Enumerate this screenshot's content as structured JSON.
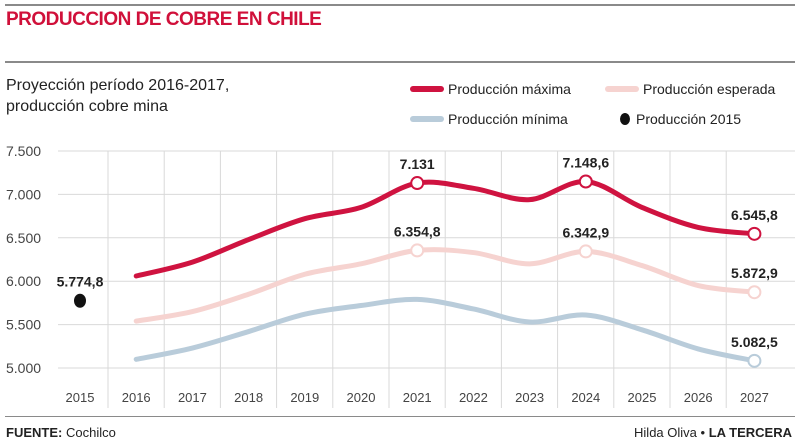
{
  "title": "PRODUCCION DE COBRE EN CHILE",
  "subtitle_line1": "Proyección período 2016-2017,",
  "subtitle_line2": "producción cobre mina",
  "source_label": "FUENTE:",
  "source_value": "Cochilco",
  "credit_author": "Hilda Oliva",
  "credit_separator": "•",
  "credit_publication": "LA TERCERA",
  "colors": {
    "title": "#d0103a",
    "maxima": "#cf1340",
    "esperada": "#f6d3d0",
    "minima": "#b9ccda",
    "p2015": "#111111"
  },
  "chart_data": {
    "type": "line",
    "title": "",
    "xlabel": "",
    "ylabel": "",
    "ylim": [
      5000,
      7500
    ],
    "y_ticks": [
      "7.500",
      "7.000",
      "6.500",
      "6.000",
      "5.500",
      "5.000"
    ],
    "y_tick_values": [
      7500,
      7000,
      6500,
      6000,
      5500,
      5000
    ],
    "categories": [
      "2015",
      "2016",
      "2017",
      "2018",
      "2019",
      "2020",
      "2021",
      "2022",
      "2023",
      "2024",
      "2025",
      "2026",
      "2027"
    ],
    "grid": true,
    "legend_placement": "top-right",
    "series": [
      {
        "name": "Producción máxima",
        "key": "maxima",
        "values": [
          null,
          6060,
          6220,
          6480,
          6720,
          6850,
          7131,
          7070,
          6940,
          7148.6,
          6850,
          6620,
          6545.8
        ],
        "labels": [
          {
            "index": 6,
            "text": "7.131"
          },
          {
            "index": 9,
            "text": "7.148,6"
          },
          {
            "index": 12,
            "text": "6.545,8"
          }
        ]
      },
      {
        "name": "Producción esperada",
        "key": "esperada",
        "values": [
          null,
          5540,
          5650,
          5850,
          6080,
          6200,
          6354.8,
          6330,
          6200,
          6342.9,
          6180,
          5950,
          5872.9
        ],
        "labels": [
          {
            "index": 6,
            "text": "6.354,8"
          },
          {
            "index": 9,
            "text": "6.342,9"
          },
          {
            "index": 12,
            "text": "5.872,9"
          }
        ]
      },
      {
        "name": "Producción mínima",
        "key": "minima",
        "values": [
          null,
          5100,
          5230,
          5420,
          5620,
          5720,
          5790,
          5680,
          5530,
          5610,
          5440,
          5220,
          5082.5
        ],
        "labels": [
          {
            "index": 12,
            "text": "5.082,5"
          }
        ]
      },
      {
        "name": "Producción 2015",
        "key": "p2015",
        "values": [
          5774.8,
          null,
          null,
          null,
          null,
          null,
          null,
          null,
          null,
          null,
          null,
          null,
          null
        ],
        "labels": [
          {
            "index": 0,
            "text": "5.774,8"
          }
        ]
      }
    ]
  }
}
